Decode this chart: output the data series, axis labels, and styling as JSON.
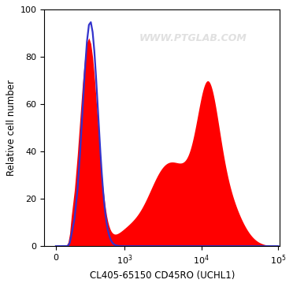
{
  "title": "WWW.PTGLAB.COM",
  "xlabel": "CL405-65150 CD45RO (UCHL1)",
  "ylabel": "Relative cell number",
  "ylim": [
    0,
    100
  ],
  "yticks": [
    0,
    20,
    40,
    60,
    80,
    100
  ],
  "background_color": "#ffffff",
  "plot_bg_color": "#ffffff",
  "red_fill_color": "#ff0000",
  "blue_line_color": "#3333cc",
  "watermark_color": "#bbbbbb",
  "watermark_alpha": 0.45,
  "watermark_fontsize": 9
}
